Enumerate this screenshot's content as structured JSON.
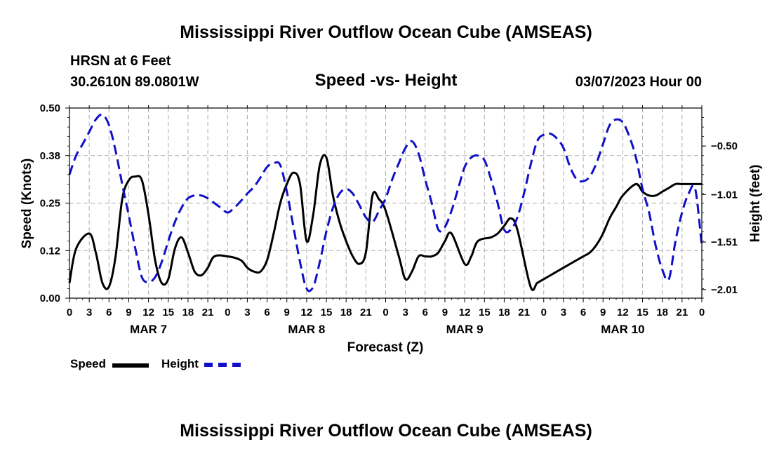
{
  "header": {
    "title": "Mississippi River Outflow Ocean Cube (AMSEAS)",
    "station": "HRSN at 6 Feet",
    "location": "30.2610N  89.0801W",
    "subtitle": "Speed -vs- Height",
    "datetime": "03/07/2023 Hour 00"
  },
  "legend": {
    "speed_label": "Speed",
    "height_label": "Height"
  },
  "footer": {
    "title": "Mississippi River Outflow Ocean Cube (AMSEAS)"
  },
  "colors": {
    "speed": "#000000",
    "height": "#1010c8",
    "grid": "#aaaaaa"
  },
  "chart_data": {
    "type": "line",
    "title": "Speed -vs- Height",
    "xlabel": "Forecast (Z)",
    "ylabel": "Speed (Knots)",
    "y2label": "Height (feet)",
    "xlim": [
      0,
      96
    ],
    "ylim": [
      0,
      0.5
    ],
    "y2lim": [
      -2.1,
      -0.1
    ],
    "x_tick_labels": [
      "0",
      "3",
      "6",
      "9",
      "12",
      "15",
      "18",
      "21",
      "0",
      "3",
      "6",
      "9",
      "12",
      "15",
      "18",
      "21",
      "0",
      "3",
      "6",
      "9",
      "12",
      "15",
      "18",
      "21",
      "0",
      "3",
      "6",
      "9",
      "12",
      "15",
      "18",
      "21",
      "0"
    ],
    "y_ticks": [
      0.0,
      0.125,
      0.25,
      0.375,
      0.5
    ],
    "y_tick_labels": [
      "0.00",
      "0.12",
      "0.25",
      "0.38",
      "0.50"
    ],
    "y2_ticks": [
      -2.01,
      -1.51,
      -1.01,
      -0.5
    ],
    "y2_tick_labels": [
      "-2.01",
      "-1.51",
      "-1.01",
      "-0.50"
    ],
    "day_labels": [
      {
        "x": 12,
        "label": "MAR 7"
      },
      {
        "x": 36,
        "label": "MAR 8"
      },
      {
        "x": 60,
        "label": "MAR 9"
      },
      {
        "x": 84,
        "label": "MAR 10"
      }
    ],
    "series": [
      {
        "name": "Speed",
        "axis": "left",
        "x": [
          0,
          1,
          3,
          4,
          5,
          6,
          7,
          8,
          9,
          10,
          11,
          12,
          13,
          14,
          15,
          16,
          17,
          18,
          19,
          20,
          21,
          22,
          24,
          26,
          27,
          28,
          29,
          30,
          31,
          32,
          33,
          34,
          35,
          36,
          37,
          38,
          39,
          40,
          41,
          42,
          43,
          44,
          45,
          46,
          47,
          48,
          50,
          51,
          52,
          53,
          54,
          55,
          56,
          57,
          58,
          60,
          61,
          62,
          64,
          65,
          66,
          67,
          68,
          70,
          71,
          72,
          73,
          74,
          75,
          76,
          77,
          78,
          79,
          80,
          81,
          82,
          83,
          84,
          86,
          87,
          88,
          89,
          90,
          91,
          92,
          93,
          94,
          96
        ],
        "values": [
          0.04,
          0.13,
          0.17,
          0.12,
          0.04,
          0.03,
          0.11,
          0.26,
          0.31,
          0.32,
          0.31,
          0.22,
          0.1,
          0.04,
          0.05,
          0.13,
          0.16,
          0.12,
          0.07,
          0.06,
          0.08,
          0.11,
          0.11,
          0.1,
          0.08,
          0.07,
          0.07,
          0.1,
          0.17,
          0.25,
          0.3,
          0.33,
          0.3,
          0.15,
          0.22,
          0.35,
          0.37,
          0.27,
          0.2,
          0.15,
          0.11,
          0.09,
          0.12,
          0.27,
          0.26,
          0.23,
          0.11,
          0.05,
          0.07,
          0.11,
          0.11,
          0.11,
          0.12,
          0.15,
          0.17,
          0.09,
          0.11,
          0.15,
          0.16,
          0.17,
          0.19,
          0.21,
          0.18,
          0.03,
          0.04,
          0.05,
          0.06,
          0.07,
          0.08,
          0.09,
          0.1,
          0.11,
          0.12,
          0.14,
          0.17,
          0.21,
          0.24,
          0.27,
          0.3,
          0.28,
          0.27,
          0.27,
          0.28,
          0.29,
          0.3,
          0.3,
          0.3,
          0.3
        ]
      },
      {
        "name": "Height",
        "axis": "right",
        "x": [
          0,
          1,
          2,
          3,
          4,
          5,
          6,
          7,
          8,
          9,
          10,
          11,
          12,
          13,
          14,
          15,
          16,
          17,
          18,
          19,
          20,
          21,
          22,
          23,
          24,
          25,
          26,
          27,
          28,
          29,
          30,
          31,
          32,
          33,
          34,
          35,
          36,
          37,
          38,
          39,
          40,
          41,
          42,
          43,
          44,
          45,
          46,
          47,
          48,
          49,
          50,
          51,
          52,
          53,
          54,
          55,
          56,
          57,
          58,
          59,
          60,
          61,
          62,
          63,
          64,
          65,
          66,
          67,
          68,
          69,
          70,
          71,
          72,
          73,
          74,
          75,
          76,
          77,
          78,
          79,
          80,
          81,
          82,
          83,
          84,
          85,
          86,
          87,
          88,
          89,
          90,
          91,
          92,
          93,
          94,
          95,
          96
        ],
        "values": [
          -0.8,
          -0.6,
          -0.48,
          -0.35,
          -0.22,
          -0.17,
          -0.28,
          -0.55,
          -0.9,
          -1.23,
          -1.58,
          -1.88,
          -1.93,
          -1.88,
          -1.72,
          -1.5,
          -1.3,
          -1.15,
          -1.05,
          -1.02,
          -1.02,
          -1.05,
          -1.1,
          -1.15,
          -1.2,
          -1.15,
          -1.08,
          -1.0,
          -0.93,
          -0.83,
          -0.72,
          -0.68,
          -0.7,
          -0.98,
          -1.35,
          -1.72,
          -2.0,
          -1.98,
          -1.72,
          -1.4,
          -1.15,
          -1.0,
          -0.95,
          -1.0,
          -1.12,
          -1.25,
          -1.3,
          -1.18,
          -1.05,
          -0.85,
          -0.68,
          -0.52,
          -0.45,
          -0.58,
          -0.85,
          -1.1,
          -1.38,
          -1.35,
          -1.18,
          -0.95,
          -0.72,
          -0.62,
          -0.6,
          -0.65,
          -0.85,
          -1.1,
          -1.38,
          -1.38,
          -1.25,
          -1.0,
          -0.7,
          -0.45,
          -0.38,
          -0.37,
          -0.42,
          -0.52,
          -0.72,
          -0.85,
          -0.87,
          -0.82,
          -0.68,
          -0.48,
          -0.28,
          -0.22,
          -0.25,
          -0.4,
          -0.62,
          -0.95,
          -1.2,
          -1.55,
          -1.8,
          -1.9,
          -1.5,
          -1.2,
          -1.0,
          -0.95,
          -1.55
        ]
      }
    ]
  }
}
